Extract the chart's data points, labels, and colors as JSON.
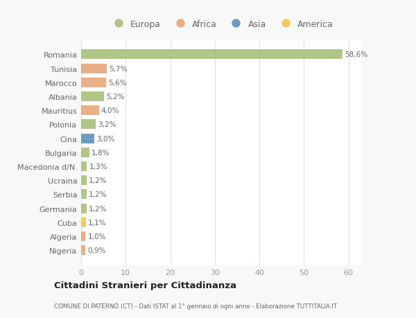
{
  "countries": [
    "Romania",
    "Tunisia",
    "Marocco",
    "Albania",
    "Mauritius",
    "Polonia",
    "Cina",
    "Bulgaria",
    "Macedonia d/N.",
    "Ucraina",
    "Serbia",
    "Germania",
    "Cuba",
    "Algeria",
    "Nigeria"
  ],
  "values": [
    58.6,
    5.7,
    5.6,
    5.2,
    4.0,
    3.2,
    3.0,
    1.8,
    1.3,
    1.2,
    1.2,
    1.2,
    1.1,
    1.0,
    0.9
  ],
  "labels": [
    "58,6%",
    "5,7%",
    "5,6%",
    "5,2%",
    "4,0%",
    "3,2%",
    "3,0%",
    "1,8%",
    "1,3%",
    "1,2%",
    "1,2%",
    "1,2%",
    "1,1%",
    "1,0%",
    "0,9%"
  ],
  "continents": [
    "Europa",
    "Africa",
    "Africa",
    "Europa",
    "Africa",
    "Europa",
    "Asia",
    "Europa",
    "Europa",
    "Europa",
    "Europa",
    "Europa",
    "America",
    "Africa",
    "Africa"
  ],
  "continent_colors": {
    "Europa": "#a8c07a",
    "Africa": "#e8a878",
    "Asia": "#5f8fc0",
    "America": "#f0c848"
  },
  "legend_order": [
    "Europa",
    "Africa",
    "Asia",
    "America"
  ],
  "title": "Cittadini Stranieri per Cittadinanza",
  "subtitle": "COMUNE DI PATERNÒ (CT) - Dati ISTAT al 1° gennaio di ogni anno - Elaborazione TUTTITALIA.IT",
  "xlim": [
    0,
    63
  ],
  "xticks": [
    0,
    10,
    20,
    30,
    40,
    50,
    60
  ],
  "bg_color": "#f8f8f8",
  "plot_bg_color": "#ffffff",
  "grid_color": "#e0e0e0",
  "label_color": "#666666",
  "tick_color": "#999999"
}
